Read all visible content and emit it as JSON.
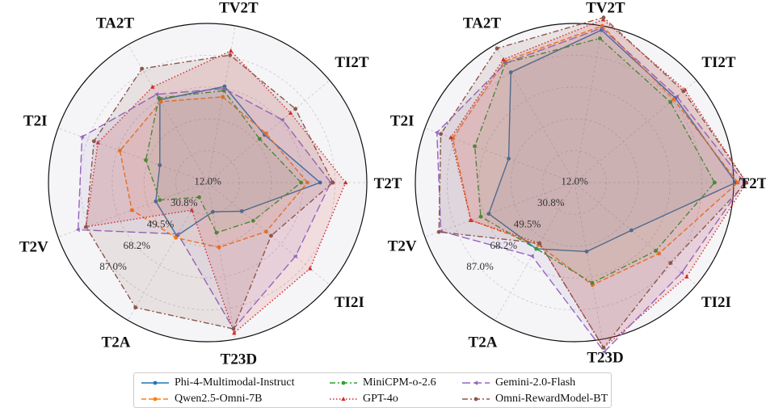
{
  "chart_data": [
    {
      "type": "radar",
      "panel": "left",
      "axes": [
        "T2T",
        "TI2T",
        "TV2T",
        "TA2T",
        "T2I",
        "T2V",
        "T2A",
        "T23D",
        "TI2I"
      ],
      "radial_tick_labels": [
        "12.0%",
        "30.8%",
        "49.5%",
        "68.2%",
        "87.0%"
      ],
      "radial_range": [
        12.0,
        87.0
      ],
      "radial_scale": "inverted",
      "grid": true,
      "series": [
        {
          "name": "Phi-4-Multimodal-Instruct",
          "values": [
            65,
            47,
            58,
            57,
            36,
            38,
            41,
            26,
            33
          ]
        },
        {
          "name": "Qwen2.5-Omni-7B",
          "values": [
            59,
            48,
            53,
            56,
            56,
            50,
            42,
            43,
            48
          ]
        },
        {
          "name": "MiniCPM-o-2.6",
          "values": [
            56,
            44,
            56,
            58,
            43,
            36,
            20,
            36,
            40
          ]
        },
        {
          "name": "GPT-4o",
          "values": [
            77,
            63,
            75,
            64,
            67,
            73,
            27,
            84,
            75
          ]
        },
        {
          "name": "Gemini-2.0-Flash",
          "values": [
            70,
            58,
            57,
            60,
            75,
            77,
            40,
            82,
            66
          ]
        },
        {
          "name": "Omni-RewardModel-BT",
          "values": [
            71,
            66,
            73,
            74,
            69,
            73,
            80,
            82,
            51
          ]
        }
      ]
    },
    {
      "type": "radar",
      "panel": "right",
      "axes": [
        "T2T",
        "TI2T",
        "TV2T",
        "TA2T",
        "T2I",
        "T2V",
        "T2A",
        "T23D",
        "TI2I"
      ],
      "radial_tick_labels": [
        "12.0%",
        "30.8%",
        "49.5%",
        "68.2%",
        "87.0%"
      ],
      "radial_range": [
        12.0,
        87.0
      ],
      "radial_scale": "inverted",
      "grid": true,
      "series": [
        {
          "name": "Phi-4-Multimodal-Instruct",
          "values": [
            88,
            74,
            85,
            72,
            45,
            55,
            48,
            45,
            47
          ]
        },
        {
          "name": "Qwen2.5-Omni-7B",
          "values": [
            89,
            73,
            87,
            78,
            73,
            64,
            46,
            61,
            64
          ]
        },
        {
          "name": "MiniCPM-o-2.6",
          "values": [
            78,
            71,
            81,
            77,
            62,
            59,
            48,
            60,
            62
          ]
        },
        {
          "name": "GPT-4o",
          "values": [
            93,
            80,
            90,
            79,
            74,
            64,
            45,
            91,
            81
          ]
        },
        {
          "name": "Gemini-2.0-Flash",
          "values": [
            92,
            75,
            86,
            77,
            81,
            79,
            52,
            93,
            78
          ]
        },
        {
          "name": "Omni-RewardModel-BT",
          "values": [
            93,
            79,
            91,
            85,
            79,
            80,
            45,
            91,
            71
          ]
        }
      ]
    }
  ],
  "legend": {
    "items": [
      {
        "label": "Phi-4-Multimodal-Instruct",
        "color": "#1f77b4",
        "dash": "solid",
        "marker": "dot"
      },
      {
        "label": "Qwen2.5-Omni-7B",
        "color": "#ff7f0e",
        "dash": "dashed",
        "marker": "dot"
      },
      {
        "label": "MiniCPM-o-2.6",
        "color": "#2ca02c",
        "dash": "dashdot",
        "marker": "dot"
      },
      {
        "label": "GPT-4o",
        "color": "#d62728",
        "dash": "dotted",
        "marker": "triangle"
      },
      {
        "label": "Gemini-2.0-Flash",
        "color": "#9467bd",
        "dash": "longdash",
        "marker": "triangle-left"
      },
      {
        "label": "Omni-RewardModel-BT",
        "color": "#8c564b",
        "dash": "dashdot",
        "marker": "dot"
      }
    ]
  }
}
